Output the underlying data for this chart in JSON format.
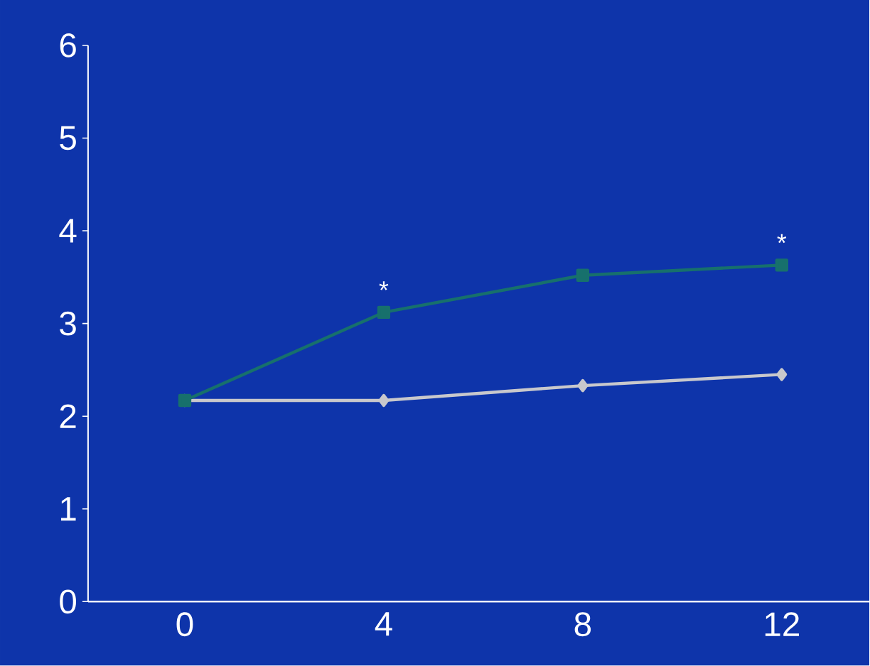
{
  "chart_data": {
    "type": "line",
    "categories": [
      "0",
      "4",
      "8",
      "12"
    ],
    "series": [
      {
        "color": "#c8c8cc",
        "values": [
          2.17,
          2.17,
          2.33,
          2.45
        ],
        "marker": "diamond"
      },
      {
        "color": "#17706c",
        "values": [
          2.17,
          3.12,
          3.52,
          3.63
        ],
        "marker": "square"
      }
    ],
    "ylim": [
      0,
      6
    ],
    "yticks": [
      0,
      1,
      2,
      3,
      4,
      5,
      6
    ],
    "annotations": [
      {
        "text": "*",
        "x": "4",
        "y": 3.12
      },
      {
        "text": "*",
        "x": "12",
        "y": 3.63
      }
    ],
    "grid": false
  }
}
